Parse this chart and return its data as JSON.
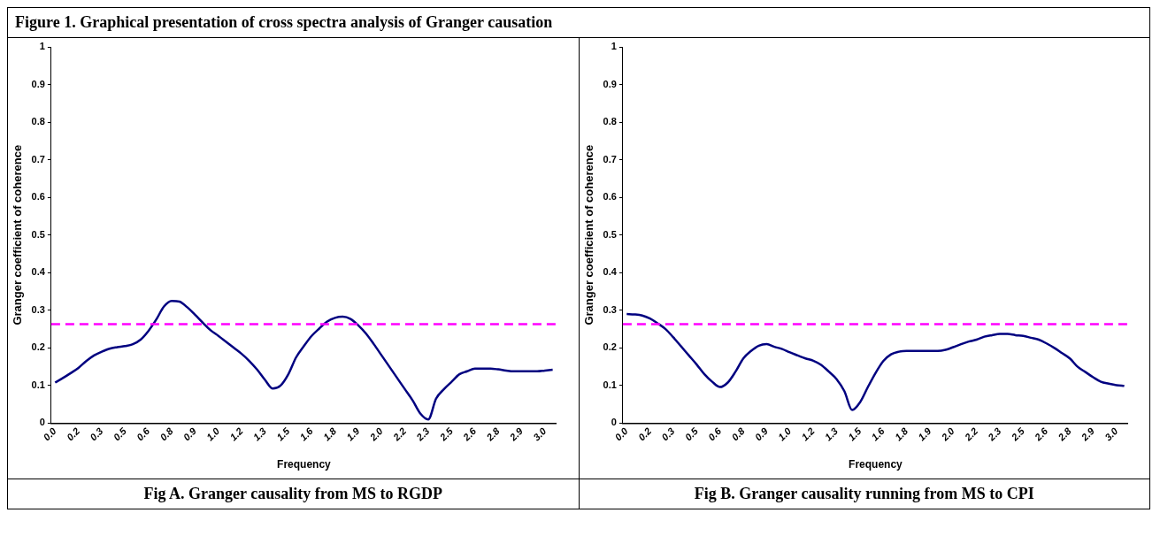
{
  "chart_data": [
    {
      "type": "line",
      "title": "Fig A. Granger causality from MS to RGDP",
      "annotations": [
        "Figure 1. Graphical presentation of cross spectra analysis of Granger causation"
      ],
      "xlabel": "Frequency",
      "ylabel": "Granger coefficient of coherence",
      "marker": "none",
      "line_style": "solid",
      "categories": [
        "0.0",
        null,
        null,
        "0.2",
        null,
        null,
        "0.3",
        null,
        null,
        "0.5",
        null,
        null,
        "0.6",
        null,
        null,
        "0.8",
        null,
        null,
        "0.9",
        null,
        null,
        "1.0",
        null,
        null,
        "1.2",
        null,
        null,
        "1.3",
        null,
        null,
        "1.5",
        null,
        null,
        "1.6",
        null,
        null,
        "1.8",
        null,
        null,
        "1.9",
        null,
        null,
        "2.0",
        null,
        null,
        "2.2",
        null,
        null,
        "2.3",
        null,
        null,
        "2.5",
        null,
        null,
        "2.6",
        null,
        null,
        "2.8",
        null,
        null,
        "2.9",
        null,
        null,
        "3.0",
        null
      ],
      "series": [
        {
          "color": "#000080",
          "values": [
            0.108,
            0.12,
            0.133,
            0.147,
            0.165,
            0.18,
            0.19,
            0.198,
            0.202,
            0.205,
            0.21,
            0.222,
            0.245,
            0.275,
            0.31,
            0.325,
            0.323,
            0.308,
            0.288,
            0.267,
            0.247,
            0.232,
            0.216,
            0.2,
            0.184,
            0.165,
            0.142,
            0.115,
            0.092,
            0.1,
            0.13,
            0.175,
            0.205,
            0.232,
            0.252,
            0.27,
            0.28,
            0.283,
            0.277,
            0.26,
            0.238,
            0.21,
            0.18,
            0.15,
            0.12,
            0.09,
            0.06,
            0.025,
            0.01,
            0.065,
            0.09,
            0.11,
            0.13,
            0.138,
            0.145,
            0.145,
            0.145,
            0.143,
            0.14,
            0.138,
            0.138,
            0.138,
            0.138,
            0.14,
            0.142
          ]
        }
      ],
      "ylim": [
        0,
        1
      ],
      "yticks": [
        0,
        0.1,
        0.2,
        0.3,
        0.4,
        0.5,
        0.6,
        0.7,
        0.8,
        0.9,
        1
      ],
      "ref_lines": [
        {
          "axis": "y",
          "value": 0.263,
          "color": "#ff00ff",
          "line_style": "dashed"
        }
      ]
    },
    {
      "type": "line",
      "title": "Fig B. Granger causality running from MS to CPI",
      "xlabel": "Frequency",
      "ylabel": "Granger coefficient of coherence",
      "marker": "none",
      "line_style": "solid",
      "categories": [
        "0.0",
        null,
        null,
        "0.2",
        null,
        null,
        "0.3",
        null,
        null,
        "0.5",
        null,
        null,
        "0.6",
        null,
        null,
        "0.8",
        null,
        null,
        "0.9",
        null,
        null,
        "1.0",
        null,
        null,
        "1.2",
        null,
        null,
        "1.3",
        null,
        null,
        "1.5",
        null,
        null,
        "1.6",
        null,
        null,
        "1.8",
        null,
        null,
        "1.9",
        null,
        null,
        "2.0",
        null,
        null,
        "2.2",
        null,
        null,
        "2.3",
        null,
        null,
        "2.5",
        null,
        null,
        "2.6",
        null,
        null,
        "2.8",
        null,
        null,
        "2.9",
        null,
        null,
        "3.0",
        null
      ],
      "series": [
        {
          "color": "#000080",
          "values": [
            0.29,
            0.289,
            0.286,
            0.278,
            0.265,
            0.25,
            0.228,
            0.204,
            0.18,
            0.156,
            0.13,
            0.11,
            0.096,
            0.108,
            0.137,
            0.172,
            0.192,
            0.206,
            0.21,
            0.203,
            0.197,
            0.188,
            0.18,
            0.172,
            0.166,
            0.155,
            0.137,
            0.117,
            0.085,
            0.035,
            0.055,
            0.095,
            0.133,
            0.165,
            0.183,
            0.19,
            0.192,
            0.192,
            0.192,
            0.192,
            0.192,
            0.195,
            0.202,
            0.21,
            0.217,
            0.222,
            0.23,
            0.234,
            0.237,
            0.237,
            0.234,
            0.232,
            0.227,
            0.222,
            0.212,
            0.2,
            0.186,
            0.172,
            0.15,
            0.136,
            0.122,
            0.11,
            0.105,
            0.101,
            0.099
          ]
        }
      ],
      "ylim": [
        0,
        1
      ],
      "yticks": [
        0,
        0.1,
        0.2,
        0.3,
        0.4,
        0.5,
        0.6,
        0.7,
        0.8,
        0.9,
        1
      ],
      "ref_lines": [
        {
          "axis": "y",
          "value": 0.263,
          "color": "#ff00ff",
          "line_style": "dashed"
        }
      ]
    }
  ]
}
